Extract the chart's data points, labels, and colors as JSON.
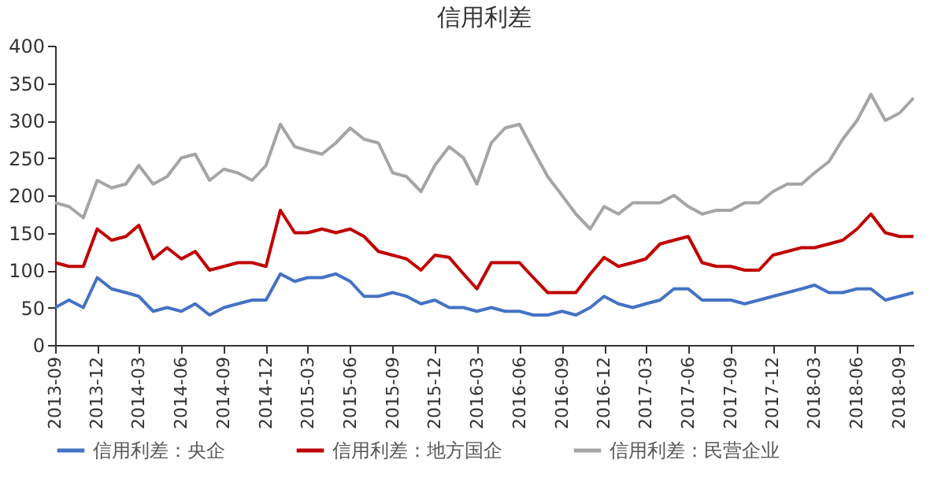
{
  "chart_data": {
    "type": "line",
    "title": "信用利差",
    "x": [
      "2013-09",
      "2013-10",
      "2013-11",
      "2013-12",
      "2014-01",
      "2014-02",
      "2014-03",
      "2014-04",
      "2014-05",
      "2014-06",
      "2014-07",
      "2014-08",
      "2014-09",
      "2014-10",
      "2014-11",
      "2014-12",
      "2015-01",
      "2015-02",
      "2015-03",
      "2015-04",
      "2015-05",
      "2015-06",
      "2015-07",
      "2015-08",
      "2015-09",
      "2015-10",
      "2015-11",
      "2015-12",
      "2016-01",
      "2016-02",
      "2016-03",
      "2016-04",
      "2016-05",
      "2016-06",
      "2016-07",
      "2016-08",
      "2016-09",
      "2016-10",
      "2016-11",
      "2016-12",
      "2017-01",
      "2017-02",
      "2017-03",
      "2017-04",
      "2017-05",
      "2017-06",
      "2017-07",
      "2017-08",
      "2017-09",
      "2017-10",
      "2017-11",
      "2017-12",
      "2018-01",
      "2018-02",
      "2018-03",
      "2018-04",
      "2018-05",
      "2018-06",
      "2018-07",
      "2018-08",
      "2018-09",
      "2018-10"
    ],
    "series": [
      {
        "name": "信用利差：央企",
        "color": "#4472c4",
        "values": [
          50,
          60,
          50,
          90,
          75,
          70,
          65,
          45,
          50,
          45,
          55,
          40,
          50,
          55,
          60,
          60,
          95,
          85,
          90,
          90,
          95,
          85,
          65,
          65,
          70,
          65,
          55,
          60,
          50,
          50,
          45,
          50,
          45,
          45,
          40,
          40,
          45,
          40,
          50,
          65,
          55,
          50,
          55,
          60,
          75,
          75,
          60,
          60,
          60,
          55,
          60,
          65,
          70,
          75,
          80,
          70,
          70,
          75,
          75,
          60,
          65,
          70
        ]
      },
      {
        "name": "信用利差：地方国企",
        "color": "#c00000",
        "values": [
          110,
          105,
          105,
          155,
          140,
          145,
          160,
          115,
          130,
          115,
          125,
          100,
          105,
          110,
          110,
          105,
          180,
          150,
          150,
          155,
          150,
          155,
          145,
          125,
          120,
          115,
          100,
          120,
          117,
          95,
          75,
          110,
          110,
          110,
          90,
          70,
          70,
          70,
          95,
          117,
          105,
          110,
          115,
          135,
          140,
          145,
          110,
          105,
          105,
          100,
          100,
          120,
          125,
          130,
          130,
          135,
          140,
          155,
          175,
          150,
          145,
          145
        ]
      },
      {
        "name": "信用利差：民营企业",
        "color": "#a5a5a5",
        "values": [
          190,
          185,
          170,
          220,
          210,
          215,
          240,
          215,
          225,
          250,
          255,
          220,
          235,
          230,
          220,
          240,
          295,
          265,
          260,
          255,
          270,
          290,
          275,
          270,
          230,
          225,
          205,
          240,
          265,
          250,
          215,
          270,
          290,
          295,
          260,
          225,
          200,
          175,
          155,
          185,
          175,
          190,
          190,
          190,
          200,
          185,
          175,
          180,
          180,
          190,
          190,
          205,
          215,
          215,
          230,
          245,
          275,
          300,
          335,
          300,
          310,
          330
        ]
      }
    ],
    "xlim": [
      "2013-09",
      "2018-10"
    ],
    "xticks": [
      "2013-09",
      "2013-12",
      "2014-03",
      "2014-06",
      "2014-09",
      "2014-12",
      "2015-03",
      "2015-06",
      "2015-09",
      "2015-12",
      "2016-03",
      "2016-06",
      "2016-09",
      "2016-12",
      "2017-03",
      "2017-06",
      "2017-09",
      "2017-12",
      "2018-03",
      "2018-06",
      "2018-09"
    ],
    "ylim": [
      0,
      400
    ],
    "yticks": [
      0,
      50,
      100,
      150,
      200,
      250,
      300,
      350,
      400
    ],
    "grid": false,
    "legend": "bottom",
    "marker": "none",
    "line_style": "solid"
  }
}
